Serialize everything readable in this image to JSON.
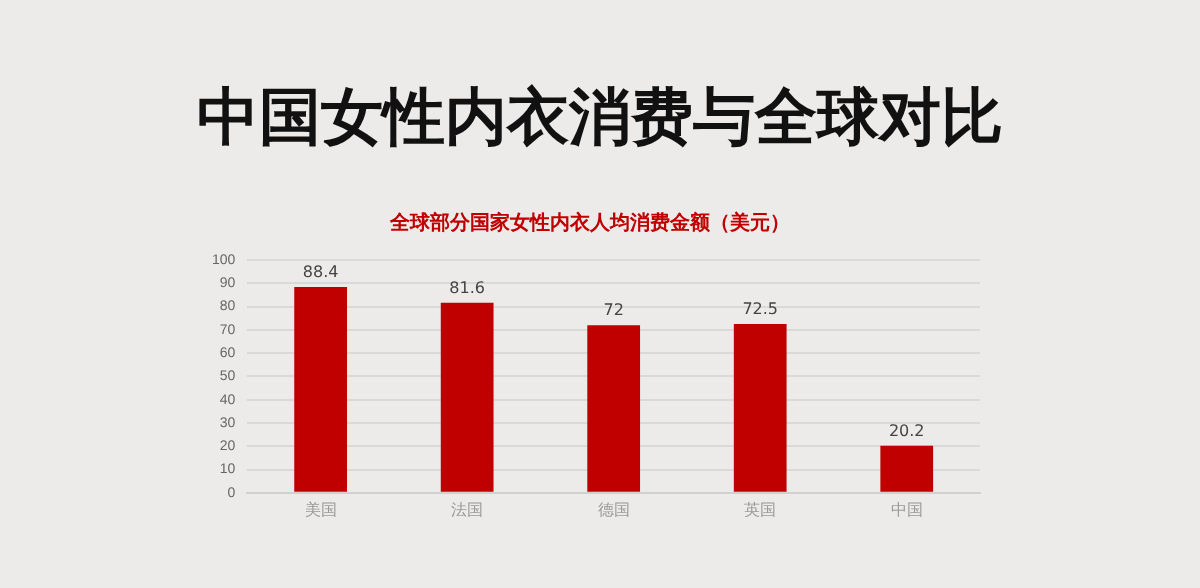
{
  "chart_data": {
    "type": "bar",
    "title": "中国女性内衣消费与全球对比",
    "subtitle": "全球部分国家女性内衣人均消费金额（美元）",
    "categories": [
      "美国",
      "法国",
      "德国",
      "英国",
      "中国"
    ],
    "values": [
      88.4,
      81.6,
      72,
      72.5,
      20.2
    ],
    "color": "#c00000",
    "ylim": [
      0,
      100
    ],
    "yticks": [
      0,
      10,
      20,
      30,
      40,
      50,
      60,
      70,
      80,
      90,
      100
    ],
    "grid": "y",
    "data_labels": true
  }
}
